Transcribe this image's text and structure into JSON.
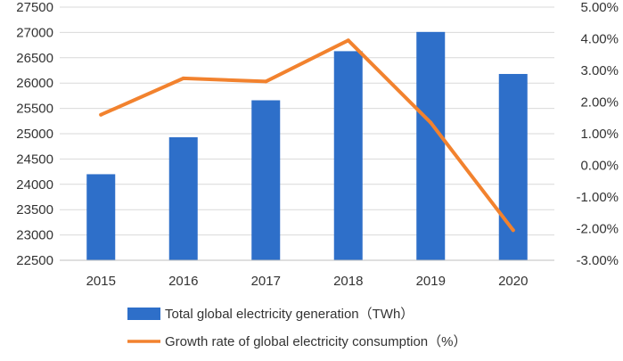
{
  "colors": {
    "bar": "#2e6fc9",
    "line": "#f2822e",
    "grid": "#d9d9d9",
    "axis": "#bfbfbf",
    "text": "#333333"
  },
  "chart_data": {
    "type": "bar",
    "title": "",
    "categories": [
      "2015",
      "2016",
      "2017",
      "2018",
      "2019",
      "2020"
    ],
    "series": [
      {
        "name": "Total global electricity generation（TWh）",
        "type": "bar",
        "axis": "left",
        "values": [
          24200,
          24930,
          25660,
          26630,
          27010,
          26180
        ]
      },
      {
        "name": "Growth rate of global electricity consumption（%）",
        "type": "line",
        "axis": "right",
        "values": [
          1.6,
          2.75,
          2.65,
          3.95,
          1.35,
          -2.05
        ]
      }
    ],
    "left_axis": {
      "ylim": [
        22500,
        27500
      ],
      "ticks": [
        22500,
        23000,
        23500,
        24000,
        24500,
        25000,
        25500,
        26000,
        26500,
        27000,
        27500
      ],
      "tick_labels": [
        "22500",
        "23000",
        "23500",
        "24000",
        "24500",
        "25000",
        "25500",
        "26000",
        "26500",
        "27000",
        "27500"
      ]
    },
    "right_axis": {
      "ylim": [
        -3,
        5
      ],
      "ticks": [
        -3,
        -2,
        -1,
        0,
        1,
        2,
        3,
        4,
        5
      ],
      "tick_labels": [
        "-3.00%",
        "-2.00%",
        "-1.00%",
        "0.00%",
        "1.00%",
        "2.00%",
        "3.00%",
        "4.00%",
        "5.00%"
      ]
    },
    "grid": true,
    "legend_position": "bottom"
  }
}
